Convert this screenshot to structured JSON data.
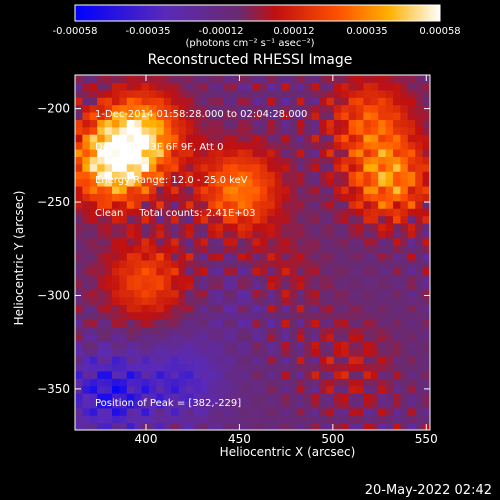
{
  "chart_data": {
    "type": "heatmap",
    "title": "Reconstructed RHESSI Image",
    "xlabel": "Heliocentric X (arcsec)",
    "ylabel": "Heliocentric Y (arcsec)",
    "xlim": [
      362,
      552
    ],
    "ylim": [
      -372,
      -182
    ],
    "xticks": [
      400,
      450,
      500,
      550
    ],
    "yticks": [
      -200,
      -250,
      -300,
      -350
    ],
    "colorbar": {
      "ticks": [
        "-0.00058",
        "-0.00035",
        "-0.00012",
        "0.00012",
        "0.00035",
        "0.00058"
      ],
      "unit_label": "(photons cm⁻² s⁻¹ asec⁻²)",
      "range": [
        -0.00058,
        0.00058
      ],
      "colormap": "blue-purple-red-orange-yellow-white"
    },
    "annotations": {
      "time_range": "1-Dec-2014 01:58:28.000 to 02:04:28.000",
      "detectors": "Detectors: 3F 6F 9F, Att 0",
      "energy_range": "Energy Range: 12.0 - 25.0 keV",
      "method": "Clean     Total counts: 2.41E+03",
      "peak": "Position of Peak = [382,-229]"
    },
    "peak_position": [
      382,
      -229
    ],
    "sources": [
      {
        "x": 382,
        "y": -229,
        "intensity": 0.00058
      },
      {
        "x": 398,
        "y": -212,
        "intensity": 0.00045
      },
      {
        "x": 450,
        "y": -243,
        "intensity": 0.0004
      },
      {
        "x": 530,
        "y": -238,
        "intensity": 0.00042
      },
      {
        "x": 520,
        "y": -205,
        "intensity": 0.0003
      },
      {
        "x": 400,
        "y": -292,
        "intensity": 0.0003
      },
      {
        "x": 470,
        "y": -290,
        "intensity": 0.00015
      },
      {
        "x": 510,
        "y": -335,
        "intensity": 0.00012
      }
    ],
    "negative_regions": [
      {
        "x": 380,
        "y": -352,
        "intensity": -0.00035
      },
      {
        "x": 420,
        "y": -345,
        "intensity": -0.00025
      },
      {
        "x": 455,
        "y": -300,
        "intensity": -0.00012
      }
    ]
  },
  "footer": {
    "timestamp": "20-May-2022 02:42"
  }
}
